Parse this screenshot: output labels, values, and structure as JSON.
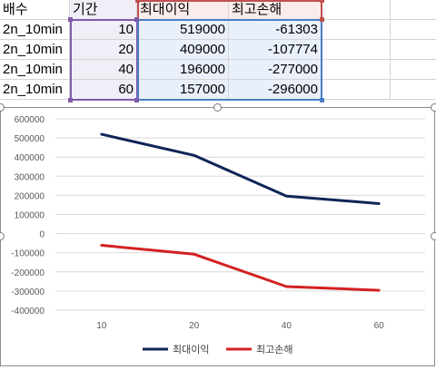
{
  "sheet": {
    "headers": [
      "배수",
      "기간",
      "최대이익",
      "최고손해"
    ],
    "rows": [
      {
        "multiplier": "2n_10min",
        "period": "10",
        "max_profit": "519000",
        "max_loss": "-61303"
      },
      {
        "multiplier": "2n_10min",
        "period": "20",
        "max_profit": "409000",
        "max_loss": "-107774"
      },
      {
        "multiplier": "2n_10min",
        "period": "40",
        "max_profit": "196000",
        "max_loss": "-277000"
      },
      {
        "multiplier": "2n_10min",
        "period": "60",
        "max_profit": "157000",
        "max_loss": "-296000"
      }
    ],
    "colors": {
      "purple": "#7e5aa8",
      "blue": "#4a7ec2",
      "red": "#c0504d"
    }
  },
  "chart_data": {
    "type": "line",
    "categories": [
      "10",
      "20",
      "40",
      "60"
    ],
    "series": [
      {
        "name": "최대이익",
        "values": [
          519000,
          409000,
          196000,
          157000
        ],
        "color": "#0f2557"
      },
      {
        "name": "최고손해",
        "values": [
          -61303,
          -107774,
          -277000,
          -296000
        ],
        "color": "#d42121"
      }
    ],
    "title": "",
    "xlabel": "",
    "ylabel": "",
    "ylim": [
      -400000,
      600000
    ],
    "yticks": [
      "600000",
      "500000",
      "400000",
      "300000",
      "200000",
      "100000",
      "0",
      "-100000",
      "-200000",
      "-300000",
      "-400000"
    ],
    "grid": true,
    "legend": "bottom"
  }
}
